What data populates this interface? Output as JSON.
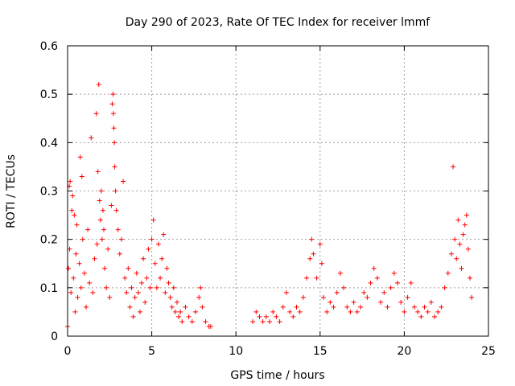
{
  "chart_data": {
    "type": "scatter",
    "title": "Day 290 of 2023, Rate Of TEC Index for receiver lmmf",
    "xlabel": "GPS time / hours",
    "ylabel": "ROTI / TECUs",
    "xlim": [
      0,
      25
    ],
    "ylim": [
      0,
      0.6
    ],
    "x_ticks": [
      0,
      5,
      10,
      15,
      20,
      25
    ],
    "y_ticks": [
      0,
      0.1,
      0.2,
      0.3,
      0.4,
      0.5,
      0.6
    ],
    "x_tick_labels": [
      "0",
      "5",
      "10",
      "15",
      "20",
      "25"
    ],
    "y_tick_labels": [
      "0",
      "0.1",
      "0.2",
      "0.3",
      "0.4",
      "0.5",
      "0.6"
    ],
    "grid": true,
    "marker": "+",
    "series": [
      {
        "name": "ROTI",
        "color": "#ff0000",
        "points": [
          [
            0.0,
            0.02
          ],
          [
            0.05,
            0.14
          ],
          [
            0.1,
            0.31
          ],
          [
            0.12,
            0.18
          ],
          [
            0.15,
            0.32
          ],
          [
            0.2,
            0.09
          ],
          [
            0.25,
            0.26
          ],
          [
            0.3,
            0.29
          ],
          [
            0.35,
            0.12
          ],
          [
            0.4,
            0.25
          ],
          [
            0.45,
            0.05
          ],
          [
            0.5,
            0.17
          ],
          [
            0.55,
            0.23
          ],
          [
            0.6,
            0.08
          ],
          [
            0.7,
            0.15
          ],
          [
            0.75,
            0.37
          ],
          [
            0.8,
            0.1
          ],
          [
            0.85,
            0.33
          ],
          [
            0.9,
            0.2
          ],
          [
            1.0,
            0.13
          ],
          [
            1.1,
            0.06
          ],
          [
            1.2,
            0.22
          ],
          [
            1.3,
            0.11
          ],
          [
            1.4,
            0.41
          ],
          [
            1.5,
            0.09
          ],
          [
            1.6,
            0.16
          ],
          [
            1.7,
            0.46
          ],
          [
            1.75,
            0.19
          ],
          [
            1.8,
            0.34
          ],
          [
            1.85,
            0.52
          ],
          [
            1.9,
            0.28
          ],
          [
            1.95,
            0.24
          ],
          [
            2.0,
            0.3
          ],
          [
            2.05,
            0.2
          ],
          [
            2.1,
            0.26
          ],
          [
            2.15,
            0.22
          ],
          [
            2.2,
            0.14
          ],
          [
            2.3,
            0.1
          ],
          [
            2.4,
            0.18
          ],
          [
            2.5,
            0.08
          ],
          [
            2.6,
            0.27
          ],
          [
            2.65,
            0.48
          ],
          [
            2.7,
            0.5
          ],
          [
            2.72,
            0.46
          ],
          [
            2.75,
            0.43
          ],
          [
            2.78,
            0.4
          ],
          [
            2.8,
            0.35
          ],
          [
            2.85,
            0.3
          ],
          [
            2.9,
            0.26
          ],
          [
            3.0,
            0.22
          ],
          [
            3.1,
            0.17
          ],
          [
            3.2,
            0.2
          ],
          [
            3.3,
            0.32
          ],
          [
            3.4,
            0.12
          ],
          [
            3.5,
            0.09
          ],
          [
            3.6,
            0.14
          ],
          [
            3.7,
            0.06
          ],
          [
            3.8,
            0.1
          ],
          [
            3.9,
            0.04
          ],
          [
            4.0,
            0.08
          ],
          [
            4.1,
            0.13
          ],
          [
            4.2,
            0.09
          ],
          [
            4.3,
            0.05
          ],
          [
            4.4,
            0.11
          ],
          [
            4.5,
            0.16
          ],
          [
            4.6,
            0.07
          ],
          [
            4.7,
            0.12
          ],
          [
            4.8,
            0.18
          ],
          [
            4.9,
            0.1
          ],
          [
            5.0,
            0.2
          ],
          [
            5.1,
            0.24
          ],
          [
            5.2,
            0.15
          ],
          [
            5.3,
            0.1
          ],
          [
            5.4,
            0.19
          ],
          [
            5.5,
            0.12
          ],
          [
            5.6,
            0.16
          ],
          [
            5.7,
            0.21
          ],
          [
            5.8,
            0.09
          ],
          [
            5.9,
            0.14
          ],
          [
            6.0,
            0.11
          ],
          [
            6.1,
            0.08
          ],
          [
            6.2,
            0.06
          ],
          [
            6.3,
            0.1
          ],
          [
            6.4,
            0.05
          ],
          [
            6.5,
            0.07
          ],
          [
            6.6,
            0.04
          ],
          [
            6.7,
            0.05
          ],
          [
            6.8,
            0.03
          ],
          [
            7.0,
            0.06
          ],
          [
            7.2,
            0.04
          ],
          [
            7.4,
            0.03
          ],
          [
            7.6,
            0.05
          ],
          [
            7.8,
            0.08
          ],
          [
            7.9,
            0.1
          ],
          [
            8.0,
            0.06
          ],
          [
            8.2,
            0.03
          ],
          [
            8.4,
            0.02
          ],
          [
            8.5,
            0.02
          ],
          [
            11.0,
            0.03
          ],
          [
            11.2,
            0.05
          ],
          [
            11.4,
            0.04
          ],
          [
            11.6,
            0.03
          ],
          [
            11.8,
            0.04
          ],
          [
            12.0,
            0.03
          ],
          [
            12.2,
            0.05
          ],
          [
            12.4,
            0.04
          ],
          [
            12.6,
            0.03
          ],
          [
            12.8,
            0.06
          ],
          [
            13.0,
            0.09
          ],
          [
            13.2,
            0.05
          ],
          [
            13.4,
            0.04
          ],
          [
            13.6,
            0.06
          ],
          [
            13.8,
            0.05
          ],
          [
            14.0,
            0.08
          ],
          [
            14.2,
            0.12
          ],
          [
            14.4,
            0.16
          ],
          [
            14.5,
            0.2
          ],
          [
            14.6,
            0.17
          ],
          [
            14.8,
            0.12
          ],
          [
            15.0,
            0.19
          ],
          [
            15.1,
            0.15
          ],
          [
            15.2,
            0.08
          ],
          [
            15.4,
            0.05
          ],
          [
            15.6,
            0.07
          ],
          [
            15.8,
            0.06
          ],
          [
            16.0,
            0.09
          ],
          [
            16.2,
            0.13
          ],
          [
            16.4,
            0.1
          ],
          [
            16.6,
            0.06
          ],
          [
            16.8,
            0.05
          ],
          [
            17.0,
            0.07
          ],
          [
            17.2,
            0.05
          ],
          [
            17.4,
            0.06
          ],
          [
            17.6,
            0.09
          ],
          [
            17.8,
            0.08
          ],
          [
            18.0,
            0.11
          ],
          [
            18.2,
            0.14
          ],
          [
            18.4,
            0.12
          ],
          [
            18.6,
            0.07
          ],
          [
            18.8,
            0.09
          ],
          [
            19.0,
            0.06
          ],
          [
            19.2,
            0.1
          ],
          [
            19.4,
            0.13
          ],
          [
            19.6,
            0.11
          ],
          [
            19.8,
            0.07
          ],
          [
            20.0,
            0.05
          ],
          [
            20.2,
            0.08
          ],
          [
            20.4,
            0.11
          ],
          [
            20.6,
            0.06
          ],
          [
            20.8,
            0.05
          ],
          [
            21.0,
            0.04
          ],
          [
            21.2,
            0.06
          ],
          [
            21.4,
            0.05
          ],
          [
            21.6,
            0.07
          ],
          [
            21.8,
            0.04
          ],
          [
            22.0,
            0.05
          ],
          [
            22.2,
            0.06
          ],
          [
            22.4,
            0.1
          ],
          [
            22.6,
            0.13
          ],
          [
            22.8,
            0.17
          ],
          [
            22.9,
            0.35
          ],
          [
            23.0,
            0.2
          ],
          [
            23.1,
            0.16
          ],
          [
            23.2,
            0.24
          ],
          [
            23.3,
            0.19
          ],
          [
            23.4,
            0.14
          ],
          [
            23.5,
            0.21
          ],
          [
            23.6,
            0.23
          ],
          [
            23.7,
            0.25
          ],
          [
            23.8,
            0.18
          ],
          [
            23.9,
            0.12
          ],
          [
            24.0,
            0.08
          ]
        ]
      }
    ]
  }
}
